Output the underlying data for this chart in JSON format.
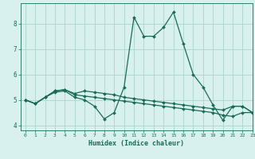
{
  "xlabel": "Humidex (Indice chaleur)",
  "background_color": "#d8f0ee",
  "grid_color": "#b2d8d0",
  "line_color": "#1a6b5a",
  "xlim": [
    -0.5,
    23
  ],
  "ylim": [
    3.8,
    8.8
  ],
  "yticks": [
    4,
    5,
    6,
    7,
    8
  ],
  "xticks": [
    0,
    1,
    2,
    3,
    4,
    5,
    6,
    7,
    8,
    9,
    10,
    11,
    12,
    13,
    14,
    15,
    16,
    17,
    18,
    19,
    20,
    21,
    22,
    23
  ],
  "series": [
    [
      5.0,
      4.85,
      5.1,
      5.3,
      5.35,
      5.1,
      5.0,
      4.75,
      4.25,
      4.5,
      5.5,
      8.25,
      7.5,
      7.5,
      7.85,
      8.45,
      7.2,
      6.0,
      5.5,
      4.8,
      4.2,
      4.75,
      4.75,
      4.5
    ],
    [
      5.0,
      4.85,
      5.1,
      5.35,
      5.4,
      5.2,
      5.15,
      5.1,
      5.05,
      5.0,
      4.95,
      4.9,
      4.85,
      4.8,
      4.75,
      4.7,
      4.65,
      4.6,
      4.55,
      4.5,
      4.4,
      4.35,
      4.5,
      4.5
    ],
    [
      5.0,
      4.85,
      5.1,
      5.35,
      5.4,
      5.25,
      5.35,
      5.3,
      5.25,
      5.2,
      5.1,
      5.05,
      5.0,
      4.95,
      4.9,
      4.85,
      4.8,
      4.75,
      4.7,
      4.65,
      4.6,
      4.75,
      4.75,
      4.5
    ]
  ]
}
